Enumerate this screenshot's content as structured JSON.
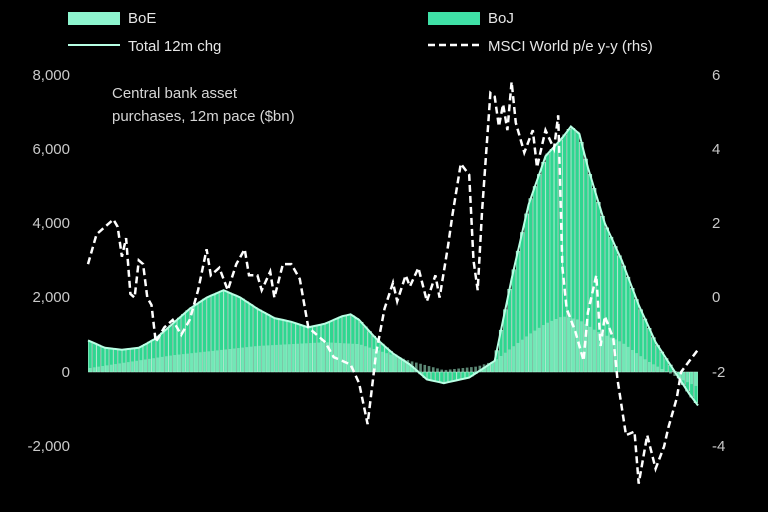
{
  "chart_data": {
    "type": "bar",
    "annotation_lines": [
      "Central bank asset",
      "purchases, 12m pace ($bn)"
    ],
    "legend": [
      {
        "label": "BoE",
        "kind": "box",
        "color": "#8ef5cf"
      },
      {
        "label": "BoJ",
        "kind": "box",
        "color": "#3fe0a6"
      },
      {
        "label": "Total 12m chg",
        "kind": "line",
        "color": "#b8ffe4"
      },
      {
        "label": "MSCI World p/e y-y (rhs)",
        "kind": "dash",
        "color": "#ffffff"
      }
    ],
    "y_left": {
      "min": -2000,
      "max": 8000,
      "ticks": [
        "-2,000",
        "0",
        "2,000",
        "4,000",
        "6,000",
        "8,000"
      ],
      "tick_values": [
        -2000,
        0,
        2000,
        4000,
        6000,
        8000
      ]
    },
    "y_right": {
      "min": -4,
      "max": 6,
      "ticks": [
        "-4",
        "-2",
        "0",
        "2",
        "4",
        "6"
      ],
      "tick_values": [
        -4,
        -2,
        0,
        2,
        4,
        6
      ]
    },
    "months": 144,
    "bar_fill": "#2fd690",
    "bar_edge": "#bff7df",
    "total_anchors": [
      [
        0,
        850
      ],
      [
        4,
        650
      ],
      [
        8,
        600
      ],
      [
        12,
        650
      ],
      [
        16,
        900
      ],
      [
        20,
        1300
      ],
      [
        24,
        1700
      ],
      [
        28,
        2000
      ],
      [
        32,
        2200
      ],
      [
        36,
        2000
      ],
      [
        40,
        1700
      ],
      [
        44,
        1450
      ],
      [
        48,
        1350
      ],
      [
        52,
        1200
      ],
      [
        56,
        1300
      ],
      [
        60,
        1500
      ],
      [
        62,
        1550
      ],
      [
        64,
        1400
      ],
      [
        68,
        900
      ],
      [
        72,
        500
      ],
      [
        76,
        200
      ],
      [
        80,
        -200
      ],
      [
        84,
        -300
      ],
      [
        88,
        -200
      ],
      [
        90,
        -150
      ],
      [
        92,
        0
      ],
      [
        96,
        300
      ],
      [
        100,
        2500
      ],
      [
        104,
        4500
      ],
      [
        108,
        5800
      ],
      [
        112,
        6300
      ],
      [
        114,
        6600
      ],
      [
        116,
        6400
      ],
      [
        118,
        5500
      ],
      [
        122,
        4000
      ],
      [
        126,
        3000
      ],
      [
        130,
        1800
      ],
      [
        134,
        800
      ],
      [
        138,
        100
      ],
      [
        142,
        -600
      ],
      [
        144,
        -900
      ]
    ],
    "boj_anchors": [
      [
        0,
        100
      ],
      [
        20,
        450
      ],
      [
        40,
        700
      ],
      [
        56,
        800
      ],
      [
        64,
        750
      ],
      [
        76,
        300
      ],
      [
        84,
        50
      ],
      [
        92,
        150
      ],
      [
        96,
        300
      ],
      [
        104,
        1000
      ],
      [
        108,
        1300
      ],
      [
        112,
        1500
      ],
      [
        116,
        1400
      ],
      [
        120,
        1100
      ],
      [
        126,
        800
      ],
      [
        132,
        300
      ],
      [
        140,
        -200
      ],
      [
        144,
        -400
      ]
    ],
    "pe_anchors": [
      [
        0,
        0.9
      ],
      [
        2,
        1.7
      ],
      [
        4,
        1.9
      ],
      [
        6,
        2.1
      ],
      [
        7,
        1.9
      ],
      [
        8,
        1.1
      ],
      [
        9,
        1.6
      ],
      [
        10,
        0.1
      ],
      [
        11,
        0.0
      ],
      [
        12,
        1.0
      ],
      [
        13,
        0.9
      ],
      [
        14,
        0.0
      ],
      [
        15,
        -0.2
      ],
      [
        16,
        -1.2
      ],
      [
        18,
        -0.8
      ],
      [
        20,
        -0.6
      ],
      [
        22,
        -1.0
      ],
      [
        24,
        -0.6
      ],
      [
        26,
        0.2
      ],
      [
        28,
        1.3
      ],
      [
        29,
        0.6
      ],
      [
        31,
        0.8
      ],
      [
        33,
        0.2
      ],
      [
        35,
        0.9
      ],
      [
        37,
        1.3
      ],
      [
        38,
        0.6
      ],
      [
        40,
        0.6
      ],
      [
        41,
        0.2
      ],
      [
        43,
        0.7
      ],
      [
        44,
        0.0
      ],
      [
        46,
        0.9
      ],
      [
        48,
        0.9
      ],
      [
        50,
        0.5
      ],
      [
        52,
        -0.8
      ],
      [
        54,
        -1.0
      ],
      [
        56,
        -1.2
      ],
      [
        58,
        -1.6
      ],
      [
        62,
        -1.8
      ],
      [
        64,
        -2.3
      ],
      [
        66,
        -3.4
      ],
      [
        68,
        -1.5
      ],
      [
        70,
        -0.3
      ],
      [
        72,
        0.4
      ],
      [
        73,
        -0.1
      ],
      [
        75,
        0.6
      ],
      [
        76,
        0.3
      ],
      [
        78,
        0.8
      ],
      [
        80,
        -0.1
      ],
      [
        82,
        0.6
      ],
      [
        83,
        0.0
      ],
      [
        85,
        1.4
      ],
      [
        86,
        2.2
      ],
      [
        88,
        3.6
      ],
      [
        90,
        3.3
      ],
      [
        91,
        1.0
      ],
      [
        92,
        0.2
      ],
      [
        93,
        2.3
      ],
      [
        95,
        5.5
      ],
      [
        96,
        5.4
      ],
      [
        97,
        4.6
      ],
      [
        98,
        5.2
      ],
      [
        99,
        4.5
      ],
      [
        100,
        5.8
      ],
      [
        101,
        4.7
      ],
      [
        103,
        3.9
      ],
      [
        105,
        4.5
      ],
      [
        106,
        3.5
      ],
      [
        108,
        4.5
      ],
      [
        110,
        4.0
      ],
      [
        111,
        4.9
      ],
      [
        112,
        0.8
      ],
      [
        113,
        -0.3
      ],
      [
        115,
        -0.9
      ],
      [
        117,
        -1.7
      ],
      [
        118,
        -0.4
      ],
      [
        120,
        0.6
      ],
      [
        121,
        -1.3
      ],
      [
        122,
        -0.5
      ],
      [
        124,
        -1.1
      ],
      [
        125,
        -2.2
      ],
      [
        127,
        -3.7
      ],
      [
        129,
        -3.6
      ],
      [
        130,
        -5.0
      ],
      [
        132,
        -3.7
      ],
      [
        134,
        -4.6
      ],
      [
        136,
        -4.0
      ],
      [
        137,
        -3.5
      ],
      [
        139,
        -2.7
      ],
      [
        140,
        -2.0
      ],
      [
        142,
        -1.7
      ],
      [
        144,
        -1.4
      ]
    ]
  }
}
